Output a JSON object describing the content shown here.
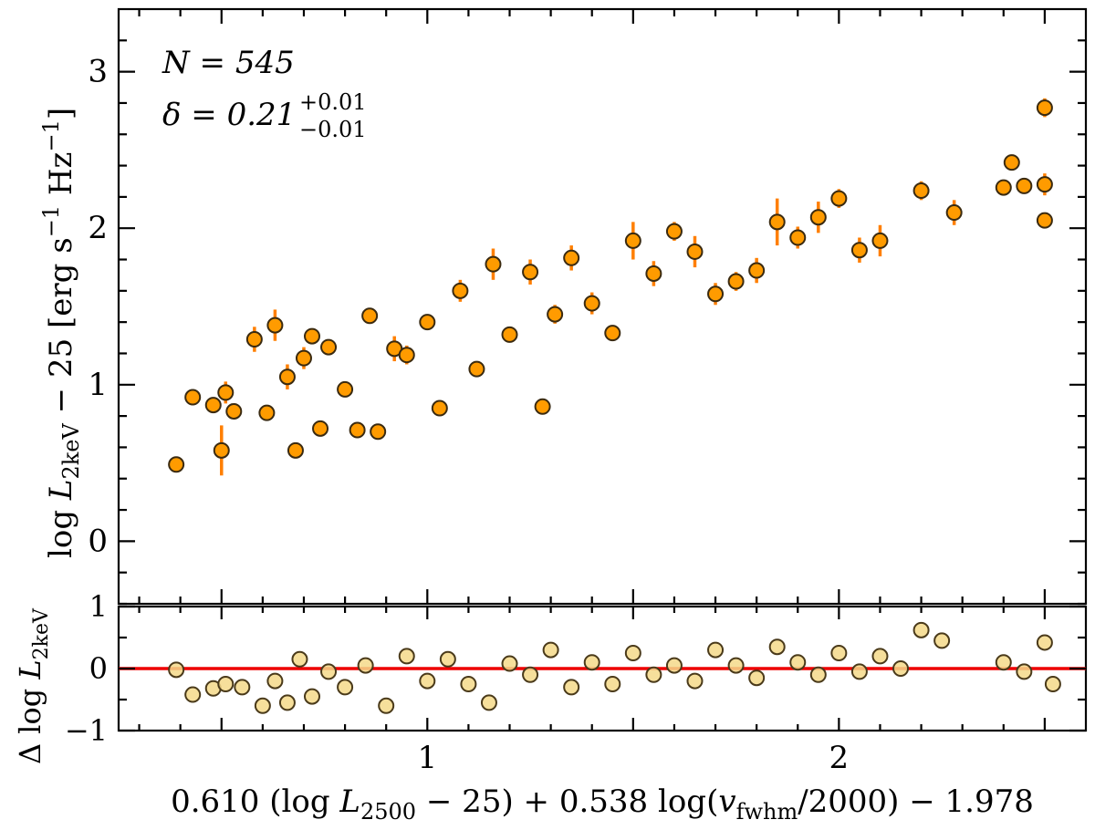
{
  "chart_data": [
    {
      "type": "scatter",
      "panel": "main",
      "title": "",
      "annotation_n": "N = 545",
      "annotation_delta": "δ = 0.21",
      "annotation_delta_sup": "+0.01",
      "annotation_delta_sub": "−0.01",
      "ylabel": "log L_2keV − 25 [erg s−1 Hz−1]",
      "ylabel_parts": {
        "a": "log ",
        "L": "L",
        "sub": "2keV",
        "b": " − 25 [erg s",
        "sup1": "−1",
        "c": " Hz",
        "sup2": "−1",
        "d": "]"
      },
      "xlim": [
        0.25,
        2.6
      ],
      "ylim": [
        -0.4,
        3.4
      ],
      "y_ticks": [
        0,
        1,
        2,
        3
      ],
      "y_tick_labels": [
        "0",
        "1",
        "2",
        "3"
      ],
      "marker_color": "#ff9b00",
      "errorbar_color": "#ff7f00",
      "x": [
        0.39,
        0.43,
        0.48,
        0.5,
        0.51,
        0.53,
        0.58,
        0.61,
        0.63,
        0.66,
        0.68,
        0.7,
        0.72,
        0.74,
        0.76,
        0.8,
        0.83,
        0.86,
        0.88,
        0.92,
        0.95,
        1.0,
        1.03,
        1.08,
        1.12,
        1.16,
        1.2,
        1.25,
        1.28,
        1.31,
        1.35,
        1.4,
        1.45,
        1.5,
        1.55,
        1.6,
        1.65,
        1.7,
        1.75,
        1.8,
        1.85,
        1.9,
        1.95,
        2.0,
        2.05,
        2.1,
        2.2,
        2.28,
        2.4,
        2.42,
        2.45,
        2.5,
        2.5,
        2.5
      ],
      "y": [
        0.49,
        0.92,
        0.87,
        0.58,
        0.95,
        0.83,
        1.29,
        0.82,
        1.38,
        1.05,
        0.58,
        1.17,
        1.31,
        0.72,
        1.24,
        0.97,
        0.71,
        1.44,
        0.7,
        1.23,
        1.19,
        1.4,
        0.85,
        1.6,
        1.1,
        1.77,
        1.32,
        1.72,
        0.86,
        1.45,
        1.81,
        1.52,
        1.33,
        1.92,
        1.71,
        1.98,
        1.85,
        1.58,
        1.66,
        1.73,
        2.04,
        1.94,
        2.07,
        2.19,
        1.86,
        1.92,
        2.24,
        2.1,
        2.26,
        2.42,
        2.27,
        2.77,
        2.28,
        2.05
      ],
      "yerr": [
        0,
        0.05,
        0.04,
        0.16,
        0.07,
        0,
        0.08,
        0,
        0.1,
        0.08,
        0,
        0.07,
        0,
        0,
        0.05,
        0,
        0,
        0.04,
        0,
        0.08,
        0.06,
        0,
        0,
        0.07,
        0,
        0.1,
        0.05,
        0.08,
        0,
        0.06,
        0.08,
        0.07,
        0.05,
        0.12,
        0.08,
        0.06,
        0.1,
        0.07,
        0.06,
        0.08,
        0.15,
        0.07,
        0.1,
        0.06,
        0.08,
        0.1,
        0.06,
        0.08,
        0,
        0.05,
        0,
        0.06,
        0.07,
        0
      ]
    },
    {
      "type": "scatter",
      "panel": "residual",
      "ylabel": "Δ log L_2keV",
      "ylabel_parts": {
        "a": "Δ log ",
        "L": "L",
        "sub": "2keV"
      },
      "xlabel": "0.610 (log L_2500 − 25) + 0.538 log(v_fwhm/2000) − 1.978",
      "xlabel_parts": {
        "a": "0.610 (log ",
        "L": "L",
        "sub1": "2500",
        "b": " − 25) + 0.538  log(",
        "v": "v",
        "sub2": "fwhm",
        "c": "/2000) − 1.978"
      },
      "xlim": [
        0.25,
        2.6
      ],
      "ylim": [
        -1.0,
        1.0
      ],
      "x_ticks": [
        1,
        2
      ],
      "x_tick_labels": [
        "1",
        "2"
      ],
      "y_ticks": [
        -1,
        0,
        1
      ],
      "y_tick_labels": [
        "−1",
        "0",
        "1"
      ],
      "reference_line_y": 0,
      "reference_line_color": "#ee0000",
      "marker_color": "#f5d98a",
      "x": [
        0.39,
        0.43,
        0.48,
        0.51,
        0.55,
        0.6,
        0.63,
        0.66,
        0.69,
        0.72,
        0.76,
        0.8,
        0.85,
        0.9,
        0.95,
        1.0,
        1.05,
        1.1,
        1.15,
        1.2,
        1.25,
        1.3,
        1.35,
        1.4,
        1.45,
        1.5,
        1.55,
        1.6,
        1.65,
        1.7,
        1.75,
        1.8,
        1.85,
        1.9,
        1.95,
        2.0,
        2.05,
        2.1,
        2.15,
        2.2,
        2.25,
        2.4,
        2.45,
        2.5,
        2.52
      ],
      "y": [
        -0.02,
        -0.42,
        -0.32,
        -0.25,
        -0.3,
        -0.6,
        -0.2,
        -0.55,
        0.15,
        -0.45,
        -0.05,
        -0.3,
        0.05,
        -0.6,
        0.2,
        -0.2,
        0.15,
        -0.25,
        -0.55,
        0.08,
        -0.1,
        0.3,
        -0.3,
        0.1,
        -0.25,
        0.25,
        -0.1,
        0.05,
        -0.2,
        0.3,
        0.05,
        -0.15,
        0.35,
        0.1,
        -0.1,
        0.25,
        -0.05,
        0.2,
        0.0,
        0.62,
        0.45,
        0.1,
        -0.05,
        0.42,
        -0.25
      ]
    }
  ]
}
